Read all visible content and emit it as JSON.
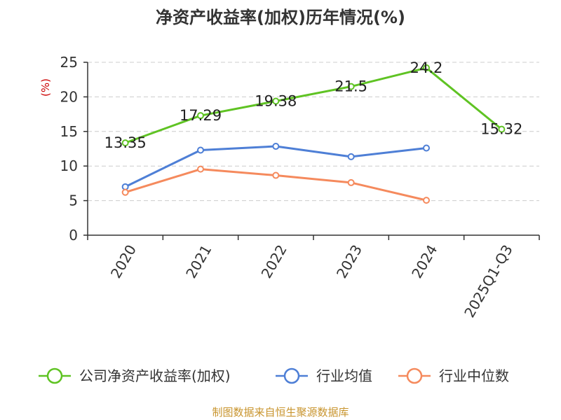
{
  "chart_data": {
    "type": "line",
    "title": "净资产收益率(加权)历年情况(%)",
    "ylabel": "(%)",
    "xlabel": "",
    "ylim": [
      0,
      25
    ],
    "yticks": [
      "0",
      "5",
      "10",
      "15",
      "20",
      "25"
    ],
    "categories": [
      "2020",
      "2021",
      "2022",
      "2023",
      "2024",
      "2025Q1-Q3"
    ],
    "grid": true,
    "legend_position": "bottom",
    "series": [
      {
        "name": "公司净资产收益率(加权)",
        "color": "#5fc323",
        "values": [
          13.35,
          17.29,
          19.38,
          21.5,
          24.2,
          15.32
        ],
        "labels": [
          "13.35",
          "17.29",
          "19.38",
          "21.5",
          "24.2",
          "15.32"
        ]
      },
      {
        "name": "行业均值",
        "color": "#4e7fd6",
        "values": [
          7.0,
          12.3,
          12.85,
          11.35,
          12.6,
          null
        ]
      },
      {
        "name": "行业中位数",
        "color": "#f58a5d",
        "values": [
          6.2,
          9.55,
          8.65,
          7.6,
          5.05,
          null
        ]
      }
    ]
  },
  "footer": "制图数据来自恒生聚源数据库"
}
